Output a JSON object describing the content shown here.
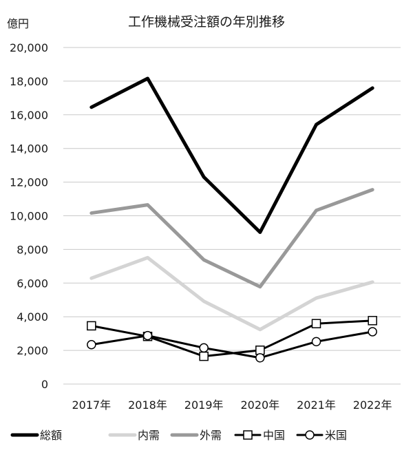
{
  "chart_data": {
    "type": "line",
    "title": "工作機械受注額の年別推移",
    "ylabel": "億円",
    "xlabel": "",
    "categories": [
      "2017年",
      "2018年",
      "2019年",
      "2020年",
      "2021年",
      "2022年"
    ],
    "ylim": [
      0,
      20000
    ],
    "yticks": [
      0,
      2000,
      4000,
      6000,
      8000,
      10000,
      12000,
      14000,
      16000,
      18000,
      20000
    ],
    "ytick_labels": [
      "0",
      "2,000",
      "4,000",
      "6,000",
      "8,000",
      "10,000",
      "12,000",
      "14,000",
      "16,000",
      "18,000",
      "20,000"
    ],
    "grid": true,
    "legend_position": "bottom",
    "series": [
      {
        "name": "総額",
        "color": "#000000",
        "marker": "none",
        "values": [
          16450,
          18160,
          12300,
          9020,
          15420,
          17590
        ]
      },
      {
        "name": "内需",
        "color": "#d4d4d4",
        "marker": "none",
        "values": [
          6290,
          7510,
          4920,
          3240,
          5110,
          6060
        ]
      },
      {
        "name": "外需",
        "color": "#999999",
        "marker": "none",
        "values": [
          10160,
          10650,
          7380,
          5780,
          10320,
          11550
        ]
      },
      {
        "name": "中国",
        "color": "#000000",
        "marker": "square",
        "values": [
          3460,
          2830,
          1650,
          2010,
          3590,
          3770
        ]
      },
      {
        "name": "米国",
        "color": "#000000",
        "marker": "circle",
        "values": [
          2340,
          2880,
          2150,
          1560,
          2520,
          3110
        ]
      }
    ]
  }
}
